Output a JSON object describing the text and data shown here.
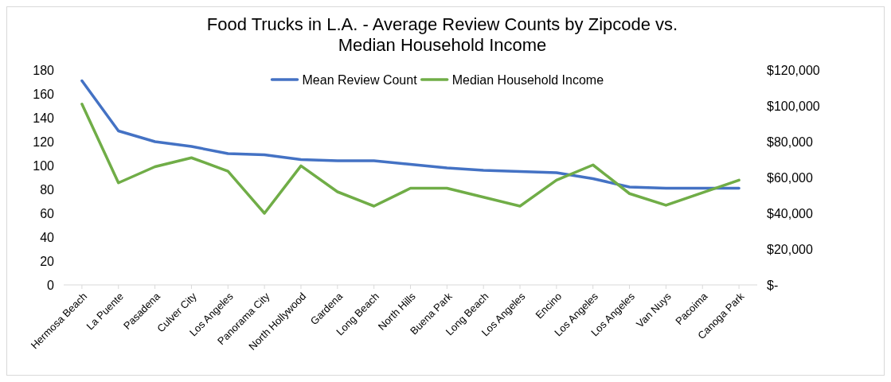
{
  "chart_data": {
    "type": "line",
    "title": "Food Trucks in L.A. - Average Review Counts by Zipcode vs. Median Household Income",
    "categories": [
      "Hermosa Beach",
      "La Puente",
      "Pasadena",
      "Culver City",
      "Los Angeles",
      "Panorama City",
      "North Hollywood",
      "Gardena",
      "Long Beach",
      "North Hills",
      "Buena Park",
      "Long Beach",
      "Los Angeles",
      "Encino",
      "Los Angeles",
      "Los Angeles",
      "Van Nuys",
      "Pacoima",
      "Canoga Park"
    ],
    "series": [
      {
        "name": "Mean Review Count",
        "color": "#4472c4",
        "values": [
          171,
          129,
          120,
          116,
          110,
          109,
          105,
          104,
          104,
          101,
          98,
          96,
          95,
          94,
          89,
          82,
          81,
          81,
          81
        ]
      },
      {
        "name": "Median Household Income",
        "color": "#70ad47",
        "axis": "y2",
        "values": [
          101000,
          57000,
          66000,
          71000,
          63500,
          40000,
          66500,
          52000,
          44000,
          54000,
          54000,
          49000,
          44000,
          58500,
          67000,
          51000,
          44500,
          51500,
          58500
        ]
      }
    ],
    "ylim": [
      0,
      180
    ],
    "yticks": [
      0,
      20,
      40,
      60,
      80,
      100,
      120,
      140,
      160,
      180
    ],
    "y2lim": [
      0,
      120000
    ],
    "y2ticks": [
      {
        "value": 0,
        "label": "$-"
      },
      {
        "value": 20000,
        "label": "$20,000"
      },
      {
        "value": 40000,
        "label": "$40,000"
      },
      {
        "value": 60000,
        "label": "$60,000"
      },
      {
        "value": 80000,
        "label": "$80,000"
      },
      {
        "value": 100000,
        "label": "$100,000"
      },
      {
        "value": 120000,
        "label": "$120,000"
      }
    ],
    "legend": "top",
    "grid": false,
    "marker": "none",
    "line_style": "solid"
  }
}
